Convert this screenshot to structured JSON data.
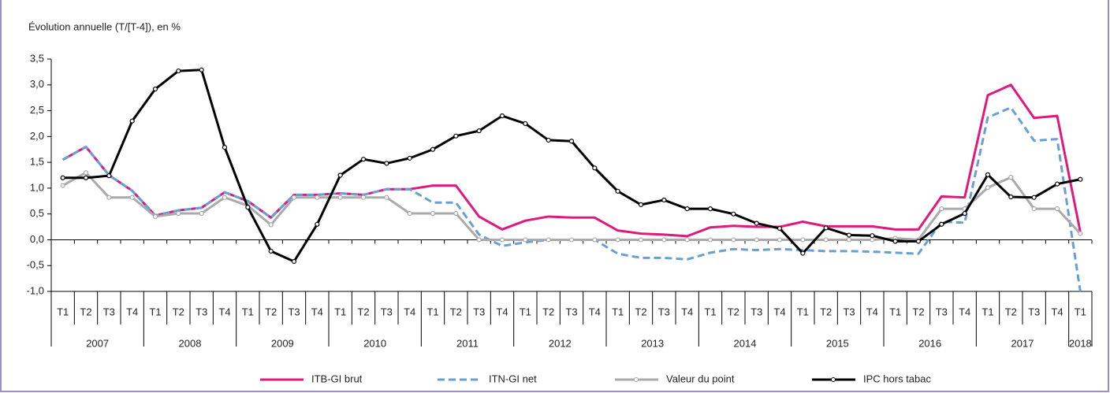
{
  "chart_data": {
    "type": "line",
    "y_axis_label": "Évolution annuelle (T/[T-4]), en %",
    "categories": [
      "T1",
      "T2",
      "T3",
      "T4",
      "T1",
      "T2",
      "T3",
      "T4",
      "T1",
      "T2",
      "T3",
      "T4",
      "T1",
      "T2",
      "T3",
      "T4",
      "T1",
      "T2",
      "T3",
      "T4",
      "T1",
      "T2",
      "T3",
      "T4",
      "T1",
      "T2",
      "T3",
      "T4",
      "T1",
      "T2",
      "T3",
      "T4",
      "T1",
      "T2",
      "T3",
      "T4",
      "T1",
      "T2",
      "T3",
      "T4",
      "T1",
      "T2",
      "T3",
      "T4",
      "T1"
    ],
    "years": [
      "2007",
      "2008",
      "2009",
      "2010",
      "2011",
      "2012",
      "2013",
      "2014",
      "2015",
      "2016",
      "2017",
      "2018"
    ],
    "ylim": [
      -1.0,
      3.5
    ],
    "yticks": [
      {
        "value": -1.0,
        "label": "-1,0"
      },
      {
        "value": -0.5,
        "label": "-0,5"
      },
      {
        "value": 0,
        "label": "0,0"
      },
      {
        "value": 0.5,
        "label": "0,5"
      },
      {
        "value": 1.0,
        "label": "1,0"
      },
      {
        "value": 1.5,
        "label": "1,5"
      },
      {
        "value": 2.0,
        "label": "2,0"
      },
      {
        "value": 2.5,
        "label": "2,5"
      },
      {
        "value": 3.0,
        "label": "3,0"
      },
      {
        "value": 3.5,
        "label": "3,5"
      }
    ],
    "grid": false,
    "legend": "bottom",
    "series": [
      {
        "name": "ITB-GI brut",
        "color": "#e0197d",
        "dashed": false,
        "markers": false,
        "values": [
          1.55,
          1.8,
          1.25,
          0.95,
          0.47,
          0.57,
          0.62,
          0.92,
          0.75,
          0.43,
          0.87,
          0.87,
          0.9,
          0.87,
          0.98,
          0.98,
          1.05,
          1.05,
          0.45,
          0.2,
          0.37,
          0.45,
          0.43,
          0.43,
          0.18,
          0.12,
          0.1,
          0.07,
          0.24,
          0.27,
          0.25,
          0.25,
          0.35,
          0.26,
          0.26,
          0.26,
          0.2,
          0.2,
          0.84,
          0.82,
          2.8,
          3.0,
          2.36,
          2.4,
          0.15
        ]
      },
      {
        "name": "ITN-GI net",
        "color": "#6a9fd4",
        "dashed": true,
        "markers": false,
        "values": [
          1.55,
          1.8,
          1.25,
          0.95,
          0.47,
          0.57,
          0.62,
          0.92,
          0.75,
          0.43,
          0.87,
          0.87,
          0.9,
          0.87,
          0.98,
          0.98,
          0.72,
          0.72,
          0.1,
          -0.12,
          -0.05,
          0,
          0,
          0,
          -0.27,
          -0.35,
          -0.35,
          -0.38,
          -0.25,
          -0.18,
          -0.2,
          -0.18,
          -0.2,
          -0.22,
          -0.22,
          -0.23,
          -0.25,
          -0.27,
          0.35,
          0.33,
          2.37,
          2.56,
          1.92,
          1.95,
          -1.0
        ]
      },
      {
        "name": "Valeur du point",
        "color": "#aaaaaa",
        "dashed": false,
        "markers": true,
        "values": [
          1.05,
          1.3,
          0.82,
          0.82,
          0.45,
          0.51,
          0.51,
          0.82,
          0.66,
          0.29,
          0.82,
          0.82,
          0.82,
          0.82,
          0.82,
          0.51,
          0.51,
          0.51,
          0,
          0,
          0,
          0,
          0,
          0,
          0,
          0,
          0,
          0,
          0,
          0,
          0,
          0,
          0,
          0,
          0,
          0,
          0.03,
          0,
          0.6,
          0.6,
          1.01,
          1.21,
          0.6,
          0.6,
          0.12
        ]
      },
      {
        "name": "IPC hors tabac",
        "color": "#000000",
        "dashed": false,
        "markers": true,
        "values": [
          1.2,
          1.2,
          1.24,
          2.3,
          2.92,
          3.27,
          3.29,
          1.79,
          0.63,
          -0.22,
          -0.42,
          0.3,
          1.25,
          1.56,
          1.48,
          1.58,
          1.75,
          2.01,
          2.11,
          2.4,
          2.25,
          1.93,
          1.91,
          1.39,
          0.94,
          0.68,
          0.77,
          0.6,
          0.6,
          0.5,
          0.32,
          0.22,
          -0.26,
          0.23,
          0.09,
          0.08,
          -0.03,
          -0.03,
          0.3,
          0.51,
          1.26,
          0.83,
          0.82,
          1.08,
          1.17
        ]
      }
    ]
  }
}
